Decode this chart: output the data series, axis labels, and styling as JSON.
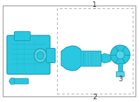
{
  "bg_color": "#ffffff",
  "border_color": "#999999",
  "dash_color": "#aaaaaa",
  "part_color": "#29c8e0",
  "part_color_dark": "#1a9bb0",
  "part_color_mid": "#55d4e8",
  "part_color_light": "#aaeaf5",
  "line_color": "#444444",
  "label_color": "#333333",
  "fig_width": 2.0,
  "fig_height": 1.47,
  "dpi": 100
}
